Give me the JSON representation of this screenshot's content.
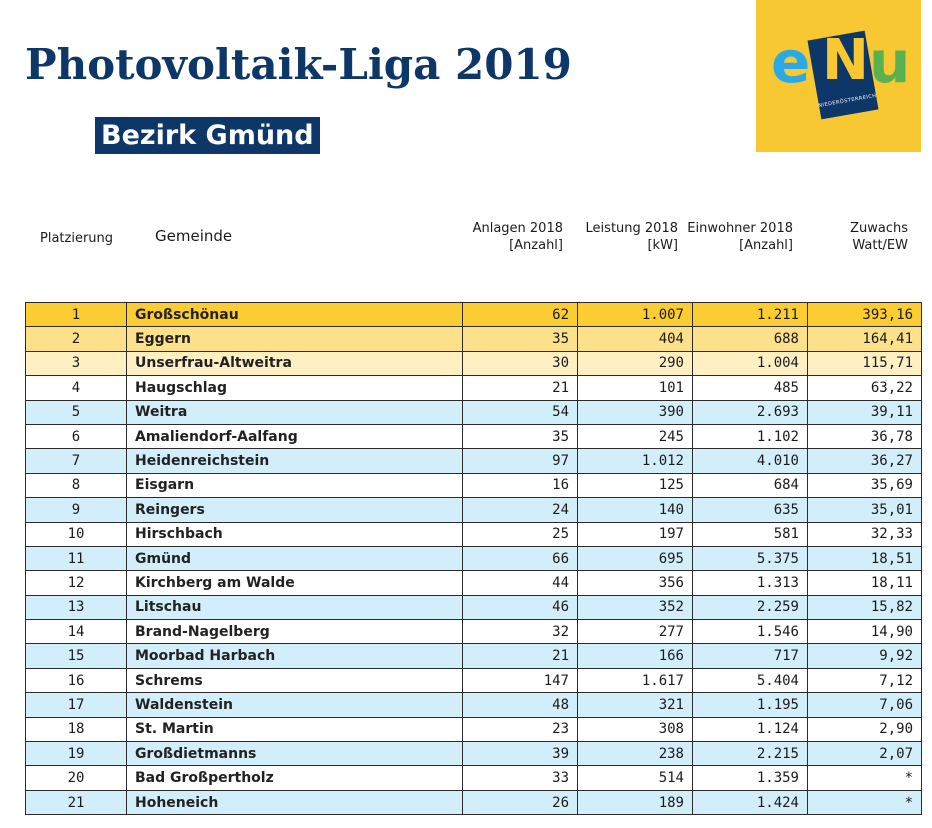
{
  "header": {
    "title": "Photovoltaik-Liga 2019",
    "subtitle": "Bezirk Gmünd"
  },
  "logo": {
    "letters": [
      "e",
      "N",
      "u"
    ],
    "tagline": "NIEDERÖSTERREICH",
    "colors": {
      "bg": "#f7c832",
      "e": "#2aa9e6",
      "n_block": "#0e3769",
      "u": "#59b24f"
    }
  },
  "columns": {
    "rank": "Platzierung",
    "name": "Gemeinde",
    "anlagen_1": "Anlagen 2018",
    "anlagen_2": "[Anzahl]",
    "leistung_1": "Leistung 2018",
    "leistung_2": "[kW]",
    "einwohner_1": "Einwohner 2018",
    "einwohner_2": "[Anzahl]",
    "zuwachs_1": "Zuwachs",
    "zuwachs_2": "Watt/EW"
  },
  "colors": {
    "title": "#0e3769",
    "rank1": "#fccc33",
    "rank2": "#fde08a",
    "rank3": "#fff0c4",
    "band_light_blue": "#d2eefa",
    "band_white": "#ffffff"
  },
  "rows": [
    {
      "rank": "1",
      "name": "Großschönau",
      "anlagen": "62",
      "leistung": "1.007",
      "einwohner": "1.211",
      "zuwachs": "393,16"
    },
    {
      "rank": "2",
      "name": "Eggern",
      "anlagen": "35",
      "leistung": "404",
      "einwohner": "688",
      "zuwachs": "164,41"
    },
    {
      "rank": "3",
      "name": "Unserfrau-Altweitra",
      "anlagen": "30",
      "leistung": "290",
      "einwohner": "1.004",
      "zuwachs": "115,71"
    },
    {
      "rank": "4",
      "name": "Haugschlag",
      "anlagen": "21",
      "leistung": "101",
      "einwohner": "485",
      "zuwachs": "63,22"
    },
    {
      "rank": "5",
      "name": "Weitra",
      "anlagen": "54",
      "leistung": "390",
      "einwohner": "2.693",
      "zuwachs": "39,11"
    },
    {
      "rank": "6",
      "name": "Amaliendorf-Aalfang",
      "anlagen": "35",
      "leistung": "245",
      "einwohner": "1.102",
      "zuwachs": "36,78"
    },
    {
      "rank": "7",
      "name": "Heidenreichstein",
      "anlagen": "97",
      "leistung": "1.012",
      "einwohner": "4.010",
      "zuwachs": "36,27"
    },
    {
      "rank": "8",
      "name": "Eisgarn",
      "anlagen": "16",
      "leistung": "125",
      "einwohner": "684",
      "zuwachs": "35,69"
    },
    {
      "rank": "9",
      "name": "Reingers",
      "anlagen": "24",
      "leistung": "140",
      "einwohner": "635",
      "zuwachs": "35,01"
    },
    {
      "rank": "10",
      "name": "Hirschbach",
      "anlagen": "25",
      "leistung": "197",
      "einwohner": "581",
      "zuwachs": "32,33"
    },
    {
      "rank": "11",
      "name": "Gmünd",
      "anlagen": "66",
      "leistung": "695",
      "einwohner": "5.375",
      "zuwachs": "18,51"
    },
    {
      "rank": "12",
      "name": "Kirchberg am Walde",
      "anlagen": "44",
      "leistung": "356",
      "einwohner": "1.313",
      "zuwachs": "18,11"
    },
    {
      "rank": "13",
      "name": "Litschau",
      "anlagen": "46",
      "leistung": "352",
      "einwohner": "2.259",
      "zuwachs": "15,82"
    },
    {
      "rank": "14",
      "name": "Brand-Nagelberg",
      "anlagen": "32",
      "leistung": "277",
      "einwohner": "1.546",
      "zuwachs": "14,90"
    },
    {
      "rank": "15",
      "name": "Moorbad Harbach",
      "anlagen": "21",
      "leistung": "166",
      "einwohner": "717",
      "zuwachs": "9,92"
    },
    {
      "rank": "16",
      "name": "Schrems",
      "anlagen": "147",
      "leistung": "1.617",
      "einwohner": "5.404",
      "zuwachs": "7,12"
    },
    {
      "rank": "17",
      "name": "Waldenstein",
      "anlagen": "48",
      "leistung": "321",
      "einwohner": "1.195",
      "zuwachs": "7,06"
    },
    {
      "rank": "18",
      "name": "St. Martin",
      "anlagen": "23",
      "leistung": "308",
      "einwohner": "1.124",
      "zuwachs": "2,90"
    },
    {
      "rank": "19",
      "name": "Großdietmanns",
      "anlagen": "39",
      "leistung": "238",
      "einwohner": "2.215",
      "zuwachs": "2,07"
    },
    {
      "rank": "20",
      "name": "Bad Großpertholz",
      "anlagen": "33",
      "leistung": "514",
      "einwohner": "1.359",
      "zuwachs": "*"
    },
    {
      "rank": "21",
      "name": "Hoheneich",
      "anlagen": "26",
      "leistung": "189",
      "einwohner": "1.424",
      "zuwachs": "*"
    }
  ]
}
